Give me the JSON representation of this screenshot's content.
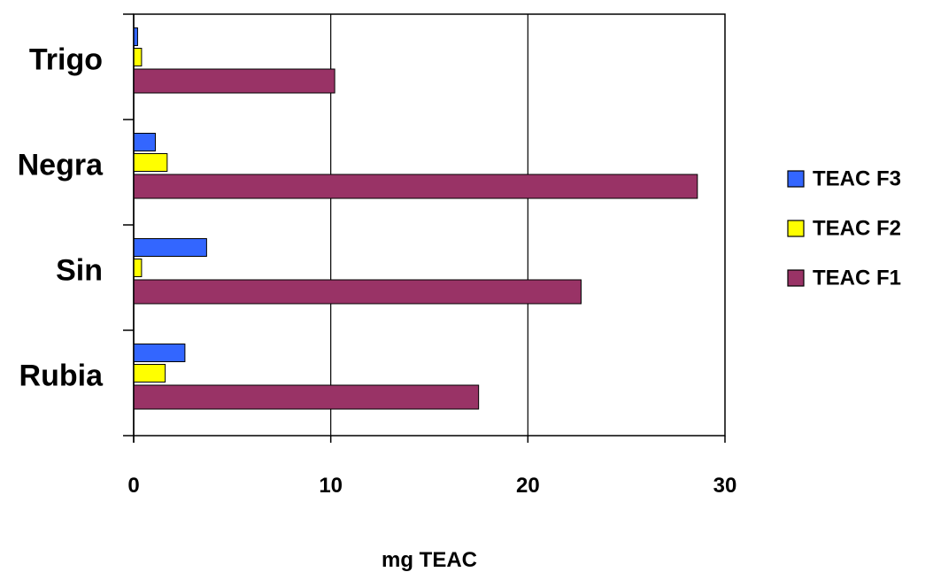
{
  "chart_data": {
    "type": "bar",
    "orientation": "horizontal",
    "categories": [
      "Trigo",
      "Negra",
      "Sin",
      "Rubia"
    ],
    "series": [
      {
        "name": "TEAC F3",
        "color": "#3366ff",
        "values": [
          0.2,
          1.1,
          3.7,
          2.6
        ]
      },
      {
        "name": "TEAC F2",
        "color": "#ffff00",
        "values": [
          0.4,
          1.7,
          0.4,
          1.6
        ]
      },
      {
        "name": "TEAC F1",
        "color": "#993366",
        "values": [
          10.2,
          28.6,
          22.7,
          17.5
        ]
      }
    ],
    "x_ticks": [
      "0",
      "10",
      "20",
      "30"
    ],
    "xlim": [
      0,
      30
    ],
    "xlabel": "mg TEAC",
    "ylabel": "",
    "title": "",
    "grid": {
      "vertical": true,
      "horizontal": false
    },
    "legend_position": "right"
  }
}
